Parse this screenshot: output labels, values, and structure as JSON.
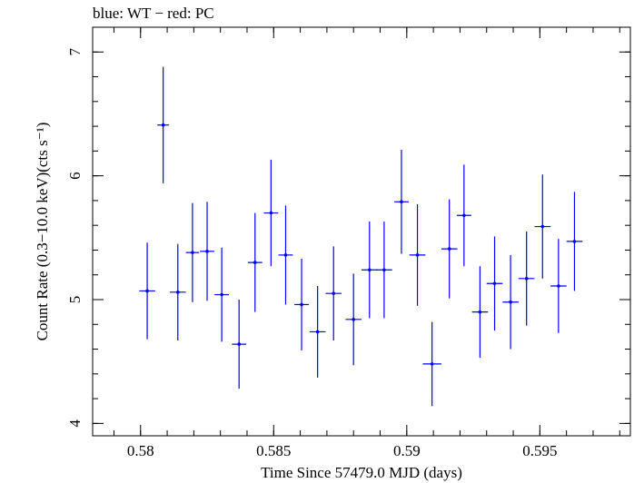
{
  "chart_data": {
    "type": "scatter",
    "title": "blue: WT − red: PC",
    "xlabel": "Time Since 57479.0 MJD (days)",
    "ylabel": "Count Rate (0.3−10.0 keV)(cts s⁻¹)",
    "xlim": [
      0.5782,
      0.5984
    ],
    "ylim": [
      3.9,
      7.2
    ],
    "xticks": [
      0.58,
      0.585,
      0.59,
      0.595
    ],
    "xtick_labels": [
      "0.58",
      "0.585",
      "0.59",
      "0.595"
    ],
    "yticks": [
      4,
      5,
      6,
      7
    ],
    "ytick_labels": [
      "4",
      "5",
      "6",
      "7"
    ],
    "grid": false,
    "series": [
      {
        "name": "WT",
        "color": "#0000ff",
        "points": [
          {
            "x": 0.58025,
            "y": 5.07,
            "xerr": 0.0003,
            "yerr": 0.39
          },
          {
            "x": 0.58085,
            "y": 6.41,
            "xerr": 0.00022,
            "yerr": 0.47
          },
          {
            "x": 0.5814,
            "y": 5.06,
            "xerr": 0.0003,
            "yerr": 0.39
          },
          {
            "x": 0.58195,
            "y": 5.38,
            "xerr": 0.00025,
            "yerr": 0.4
          },
          {
            "x": 0.5825,
            "y": 5.39,
            "xerr": 0.00027,
            "yerr": 0.4
          },
          {
            "x": 0.58305,
            "y": 5.04,
            "xerr": 0.00027,
            "yerr": 0.38
          },
          {
            "x": 0.5837,
            "y": 4.64,
            "xerr": 0.00027,
            "yerr": 0.36
          },
          {
            "x": 0.5843,
            "y": 5.3,
            "xerr": 0.00027,
            "yerr": 0.4
          },
          {
            "x": 0.5849,
            "y": 5.7,
            "xerr": 0.00027,
            "yerr": 0.43
          },
          {
            "x": 0.58545,
            "y": 5.36,
            "xerr": 0.00027,
            "yerr": 0.4
          },
          {
            "x": 0.58605,
            "y": 4.96,
            "xerr": 0.00027,
            "yerr": 0.37
          },
          {
            "x": 0.58665,
            "y": 4.74,
            "xerr": 0.0003,
            "yerr": 0.37
          },
          {
            "x": 0.58725,
            "y": 5.05,
            "xerr": 0.0003,
            "yerr": 0.38
          },
          {
            "x": 0.588,
            "y": 4.84,
            "xerr": 0.0003,
            "yerr": 0.37
          },
          {
            "x": 0.5886,
            "y": 5.24,
            "xerr": 0.0003,
            "yerr": 0.39
          },
          {
            "x": 0.58915,
            "y": 5.24,
            "xerr": 0.0003,
            "yerr": 0.39
          },
          {
            "x": 0.5898,
            "y": 5.79,
            "xerr": 0.00027,
            "yerr": 0.42
          },
          {
            "x": 0.5904,
            "y": 5.36,
            "xerr": 0.0003,
            "yerr": 0.41
          },
          {
            "x": 0.59095,
            "y": 4.48,
            "xerr": 0.00035,
            "yerr": 0.34
          },
          {
            "x": 0.5916,
            "y": 5.41,
            "xerr": 0.0003,
            "yerr": 0.4
          },
          {
            "x": 0.59215,
            "y": 5.68,
            "xerr": 0.00027,
            "yerr": 0.41
          },
          {
            "x": 0.59275,
            "y": 4.9,
            "xerr": 0.0003,
            "yerr": 0.37
          },
          {
            "x": 0.5933,
            "y": 5.13,
            "xerr": 0.0003,
            "yerr": 0.38
          },
          {
            "x": 0.5939,
            "y": 4.98,
            "xerr": 0.0003,
            "yerr": 0.38
          },
          {
            "x": 0.5945,
            "y": 5.17,
            "xerr": 0.0003,
            "yerr": 0.38
          },
          {
            "x": 0.5951,
            "y": 5.59,
            "xerr": 0.0003,
            "yerr": 0.42
          },
          {
            "x": 0.5957,
            "y": 5.11,
            "xerr": 0.0003,
            "yerr": 0.38
          },
          {
            "x": 0.5963,
            "y": 5.47,
            "xerr": 0.0003,
            "yerr": 0.4
          }
        ]
      }
    ]
  }
}
